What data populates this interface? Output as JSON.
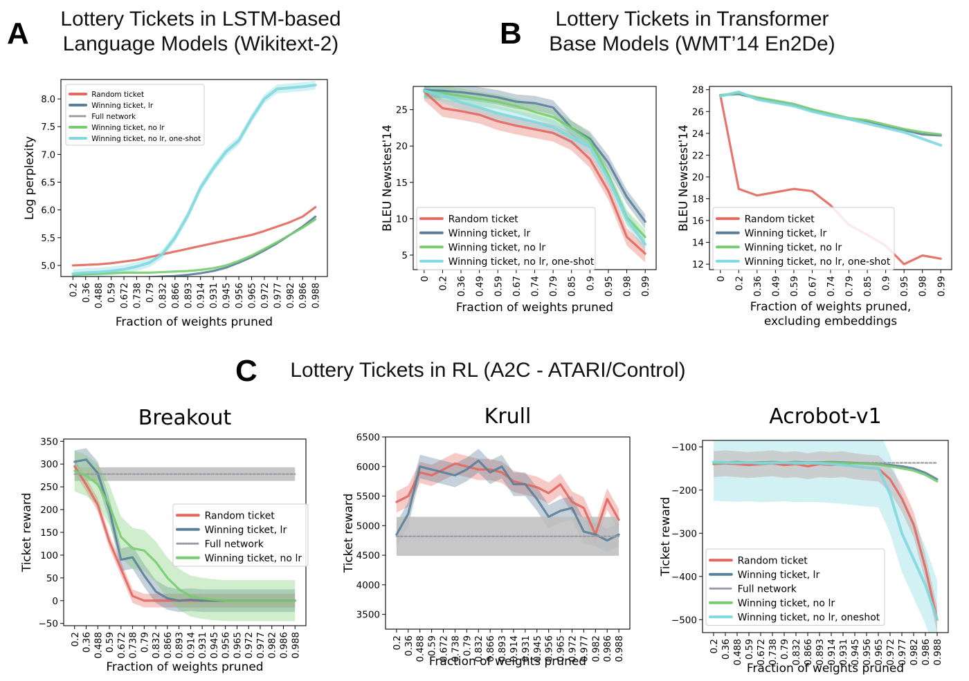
{
  "panel_labels": {
    "a": "A",
    "b": "B",
    "c": "C"
  },
  "titles": {
    "a": [
      "Lottery Tickets in LSTM-based",
      "Language Models (Wikitext-2)"
    ],
    "b": [
      "Lottery Tickets in Transformer",
      "Base Models (WMT’14 En2De)"
    ],
    "c": "Lottery Tickets in RL (A2C - ATARI/Control)"
  },
  "colors": {
    "random": "#e2675e",
    "winning_lr": "#5a7f99",
    "full": "#9a9aa6",
    "winning_nolr": "#77cc6f",
    "oneshot": "#7fd8df"
  },
  "chart_data": [
    {
      "id": "lstm",
      "type": "line",
      "title": "",
      "xlabel": "Fraction of weights pruned",
      "ylabel": "Log perplexity",
      "ylim": [
        4.8,
        8.35
      ],
      "yticks": [
        5.0,
        5.5,
        6.0,
        6.5,
        7.0,
        7.5,
        8.0
      ],
      "ytick_labels": [
        "5.0",
        "5.5",
        "6.0",
        "6.5",
        "7.0",
        "7.5",
        "8.0"
      ],
      "categories": [
        "0.2",
        "0.36",
        "0.488",
        "0.59",
        "0.672",
        "0.738",
        "0.79",
        "0.832",
        "0.866",
        "0.893",
        "0.914",
        "0.931",
        "0.945",
        "0.956",
        "0.965",
        "0.972",
        "0.977",
        "0.982",
        "0.986",
        "0.988"
      ],
      "legend_loc": "top-left",
      "series": [
        {
          "name": "Random ticket",
          "key": "random",
          "values": [
            5.0,
            5.01,
            5.02,
            5.04,
            5.07,
            5.1,
            5.15,
            5.2,
            5.25,
            5.3,
            5.35,
            5.4,
            5.45,
            5.5,
            5.55,
            5.62,
            5.7,
            5.78,
            5.88,
            6.05
          ]
        },
        {
          "name": "Winning ticket, lr",
          "key": "winning_lr",
          "values": [
            4.76,
            4.76,
            4.76,
            4.77,
            4.77,
            4.78,
            4.79,
            4.8,
            4.81,
            4.83,
            4.86,
            4.9,
            4.96,
            5.05,
            5.15,
            5.27,
            5.4,
            5.55,
            5.7,
            5.88
          ]
        },
        {
          "name": "Full network",
          "key": "full",
          "dashed": true,
          "values": [
            4.76,
            4.76,
            4.76,
            4.76,
            4.76,
            4.76,
            4.76,
            4.76,
            4.76,
            4.76,
            4.76,
            4.76,
            4.76,
            4.76,
            4.76,
            4.76,
            4.76,
            4.76,
            4.76,
            4.76
          ]
        },
        {
          "name": "Winning ticket, no lr",
          "key": "winning_nolr",
          "values": [
            4.83,
            4.84,
            4.85,
            4.86,
            4.87,
            4.87,
            4.87,
            4.88,
            4.89,
            4.9,
            4.92,
            4.95,
            5.0,
            5.08,
            5.18,
            5.3,
            5.42,
            5.55,
            5.68,
            5.83
          ]
        },
        {
          "name": "Winning ticket, no lr, one-shot",
          "key": "oneshot",
          "band": 0.08,
          "values": [
            4.85,
            4.87,
            4.88,
            4.9,
            4.93,
            4.98,
            5.05,
            5.2,
            5.5,
            5.9,
            6.4,
            6.75,
            7.05,
            7.25,
            7.65,
            8.0,
            8.18,
            8.2,
            8.22,
            8.25
          ]
        }
      ]
    },
    {
      "id": "transformer_bleu",
      "type": "line",
      "title": "",
      "xlabel": "Fraction of weights pruned",
      "ylabel": "BLEU Newstest'14",
      "ylim": [
        3,
        28.2
      ],
      "yticks": [
        5,
        10,
        15,
        20,
        25
      ],
      "ytick_labels": [
        "5",
        "10",
        "15",
        "20",
        "25"
      ],
      "categories": [
        "0",
        "0.2",
        "0.36",
        "0.49",
        "0.59",
        "0.67",
        "0.74",
        "0.79",
        "0.85",
        "0.9",
        "0.95",
        "0.98",
        "0.99"
      ],
      "legend_loc": "bottom-left",
      "series": [
        {
          "name": "Random ticket",
          "key": "random",
          "band": 1.2,
          "values": [
            27.5,
            25.2,
            24.8,
            24.3,
            23.4,
            22.8,
            22.3,
            21.8,
            20.6,
            18.2,
            13.8,
            7.5,
            5.2
          ]
        },
        {
          "name": "Winning ticket, lr",
          "key": "winning_lr",
          "band": 1.0,
          "values": [
            27.7,
            27.6,
            27.4,
            27.1,
            26.7,
            26.1,
            25.9,
            25.3,
            22.5,
            21.0,
            17.7,
            13.0,
            9.6
          ]
        },
        {
          "name": "Winning ticket, no lr",
          "key": "winning_nolr",
          "band": 1.0,
          "values": [
            27.5,
            27.3,
            26.9,
            26.5,
            26.1,
            25.5,
            24.7,
            24.0,
            22.5,
            20.7,
            16.0,
            10.2,
            7.5
          ]
        },
        {
          "name": "Winning ticket, no lr, one-shot",
          "key": "oneshot",
          "band": 1.0,
          "values": [
            27.6,
            27.0,
            26.0,
            25.3,
            24.5,
            23.9,
            23.3,
            22.6,
            21.2,
            19.8,
            15.5,
            10.0,
            6.5
          ]
        }
      ]
    },
    {
      "id": "transformer_bleu_noemb",
      "type": "line",
      "title": "",
      "xlabel": [
        "Fraction of weights pruned,",
        "excluding embeddings"
      ],
      "ylabel": "BLEU Newstest'14",
      "ylim": [
        11.5,
        28.3
      ],
      "yticks": [
        12,
        14,
        16,
        18,
        20,
        22,
        24,
        26,
        28
      ],
      "ytick_labels": [
        "12",
        "14",
        "16",
        "18",
        "20",
        "22",
        "24",
        "26",
        "28"
      ],
      "categories": [
        "0",
        "0.2",
        "0.36",
        "0.49",
        "0.59",
        "0.67",
        "0.74",
        "0.79",
        "0.85",
        "0.9",
        "0.95",
        "0.98",
        "0.99"
      ],
      "legend_loc": "bottom-left",
      "series": [
        {
          "name": "Random ticket",
          "key": "random",
          "values": [
            27.5,
            18.9,
            18.3,
            18.6,
            18.9,
            18.7,
            17.4,
            15.6,
            14.7,
            13.7,
            12.0,
            12.8,
            12.5
          ]
        },
        {
          "name": "Winning ticket, lr",
          "key": "winning_lr",
          "values": [
            27.5,
            27.6,
            27.2,
            26.9,
            26.6,
            26.1,
            25.7,
            25.3,
            25.1,
            24.6,
            24.3,
            23.9,
            23.8
          ]
        },
        {
          "name": "Winning ticket, no lr",
          "key": "winning_nolr",
          "values": [
            27.5,
            27.7,
            27.3,
            27.0,
            26.7,
            26.2,
            25.8,
            25.4,
            25.2,
            24.8,
            24.4,
            24.1,
            23.9
          ]
        },
        {
          "name": "Winning ticket, no lr, one-shot",
          "key": "oneshot",
          "values": [
            27.4,
            27.8,
            27.1,
            26.8,
            26.5,
            26.0,
            25.6,
            25.3,
            24.9,
            24.5,
            24.1,
            23.5,
            22.9
          ]
        }
      ]
    },
    {
      "id": "breakout",
      "type": "line",
      "title": "Breakout",
      "xlabel": "Fraction of weights pruned",
      "ylabel": "Ticket reward",
      "ylim": [
        -55,
        355
      ],
      "yticks": [
        -50,
        0,
        50,
        100,
        150,
        200,
        250,
        300,
        350
      ],
      "ytick_labels": [
        "−50",
        "0",
        "50",
        "100",
        "150",
        "200",
        "250",
        "300",
        "350"
      ],
      "categories": [
        "0.2",
        "0.36",
        "0.488",
        "0.59",
        "0.672",
        "0.738",
        "0.79",
        "0.832",
        "0.866",
        "0.893",
        "0.914",
        "0.931",
        "0.945",
        "0.956",
        "0.965",
        "0.972",
        "0.977",
        "0.982",
        "0.986",
        "0.988"
      ],
      "legend_loc": "center-right",
      "series": [
        {
          "name": "Random ticket",
          "key": "random",
          "band": 15,
          "values": [
            295,
            255,
            210,
            130,
            70,
            10,
            0,
            0,
            0,
            0,
            0,
            0,
            0,
            0,
            0,
            0,
            0,
            0,
            0,
            0
          ]
        },
        {
          "name": "Winning ticket, lr",
          "key": "winning_lr",
          "band": 25,
          "values": [
            305,
            310,
            280,
            200,
            90,
            95,
            55,
            20,
            5,
            0,
            2,
            0,
            0,
            0,
            0,
            0,
            0,
            0,
            0,
            0
          ]
        },
        {
          "name": "Full network",
          "key": "full",
          "dashed": true,
          "band": 15,
          "values": [
            278,
            278,
            278,
            278,
            278,
            278,
            278,
            278,
            278,
            278,
            278,
            278,
            278,
            278,
            278,
            278,
            278,
            278,
            278,
            278
          ]
        },
        {
          "name": "Winning ticket, no lr",
          "key": "winning_nolr",
          "band": 45,
          "values": [
            285,
            275,
            255,
            210,
            140,
            115,
            110,
            85,
            50,
            25,
            10,
            5,
            2,
            0,
            0,
            0,
            0,
            0,
            0,
            0
          ]
        }
      ]
    },
    {
      "id": "krull",
      "type": "line",
      "title": "Krull",
      "xlabel": "Fraction of weights pruned",
      "ylabel": "Ticket reward",
      "ylim": [
        3250,
        6500
      ],
      "yticks": [
        3500,
        4000,
        4500,
        5000,
        5500,
        6000,
        6500
      ],
      "ytick_labels": [
        "3500",
        "4000",
        "4500",
        "5000",
        "5500",
        "6000",
        "6500"
      ],
      "categories": [
        "0.2",
        "0.36",
        "0.488",
        "0.59",
        "0.672",
        "0.738",
        "0.79",
        "0.832",
        "0.866",
        "0.893",
        "0.914",
        "0.931",
        "0.945",
        "0.956",
        "0.965",
        "0.972",
        "0.977",
        "0.982",
        "0.986",
        "0.988"
      ],
      "legend_loc": "none",
      "series": [
        {
          "name": "Random ticket",
          "key": "random",
          "band": 180,
          "values": [
            5400,
            5500,
            5900,
            5850,
            5950,
            6050,
            6000,
            5950,
            5950,
            5900,
            5750,
            5700,
            5650,
            5550,
            5700,
            5400,
            5300,
            4850,
            5450,
            5100
          ]
        },
        {
          "name": "Winning ticket, lr",
          "key": "winning_lr",
          "band": 200,
          "values": [
            4850,
            5200,
            6000,
            5950,
            5900,
            5850,
            5950,
            6100,
            5900,
            6000,
            5700,
            5700,
            5450,
            5150,
            5250,
            5300,
            4900,
            4850,
            4750,
            4850
          ]
        },
        {
          "name": "Full network",
          "key": "full",
          "dashed": true,
          "band": 330,
          "values": [
            4820,
            4820,
            4820,
            4820,
            4820,
            4820,
            4820,
            4820,
            4820,
            4820,
            4820,
            4820,
            4820,
            4820,
            4820,
            4820,
            4820,
            4820,
            4820,
            4820
          ]
        }
      ]
    },
    {
      "id": "acrobot",
      "type": "line",
      "title": "Acrobot-v1",
      "xlabel": "Fraction of weights pruned",
      "ylabel": "Ticket reward",
      "ylim": [
        -530,
        -85
      ],
      "yticks": [
        -500,
        -400,
        -300,
        -200,
        -100
      ],
      "ytick_labels": [
        "−500",
        "−400",
        "−300",
        "−200",
        "−100"
      ],
      "categories": [
        "0.2",
        "0.36",
        "0.488",
        "0.59",
        "0.672",
        "0.738",
        "0.79",
        "0.832",
        "0.866",
        "0.893",
        "0.914",
        "0.931",
        "0.945",
        "0.956",
        "0.965",
        "0.972",
        "0.977",
        "0.982",
        "0.986",
        "0.988"
      ],
      "legend_loc": "bottom-left",
      "series": [
        {
          "name": "Random ticket",
          "key": "random",
          "band": 30,
          "values": [
            -140,
            -138,
            -140,
            -142,
            -140,
            -138,
            -142,
            -140,
            -145,
            -140,
            -142,
            -140,
            -145,
            -148,
            -150,
            -175,
            -220,
            -280,
            -380,
            -500
          ]
        },
        {
          "name": "Winning ticket, lr",
          "key": "winning_lr",
          "values": [
            -137,
            -136,
            -135,
            -136,
            -136,
            -135,
            -136,
            -135,
            -136,
            -136,
            -135,
            -136,
            -137,
            -138,
            -140,
            -142,
            -145,
            -150,
            -160,
            -175
          ]
        },
        {
          "name": "Full network",
          "key": "full",
          "dashed": true,
          "values": [
            -137,
            -137,
            -137,
            -137,
            -137,
            -137,
            -137,
            -137,
            -137,
            -137,
            -137,
            -137,
            -137,
            -137,
            -137,
            -137,
            -137,
            -137,
            -137,
            -137
          ]
        },
        {
          "name": "Winning ticket, no lr",
          "key": "winning_nolr",
          "values": [
            -138,
            -137,
            -136,
            -137,
            -137,
            -136,
            -137,
            -136,
            -137,
            -137,
            -136,
            -137,
            -138,
            -139,
            -141,
            -145,
            -150,
            -155,
            -165,
            -180
          ]
        },
        {
          "name": "Winning ticket, no lr, oneshot",
          "key": "oneshot",
          "band": 90,
          "values": [
            -135,
            -136,
            -137,
            -136,
            -138,
            -137,
            -136,
            -138,
            -137,
            -138,
            -140,
            -142,
            -145,
            -148,
            -150,
            -210,
            -300,
            -360,
            -420,
            -500
          ]
        }
      ]
    }
  ]
}
